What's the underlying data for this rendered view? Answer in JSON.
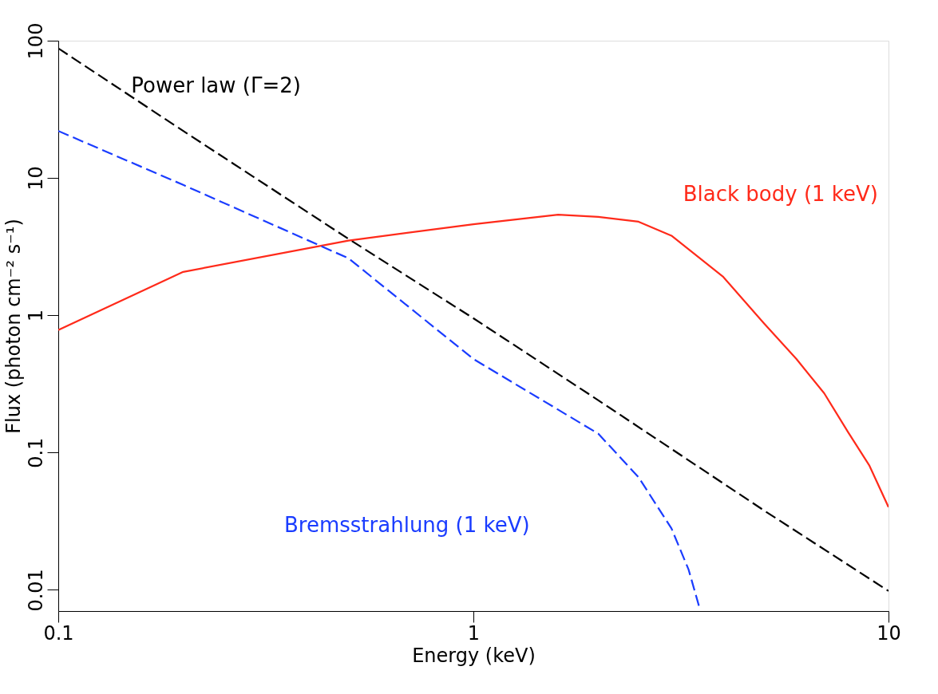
{
  "chart_data": {
    "type": "line",
    "xlabel": "Energy (keV)",
    "ylabel": "Flux (photon cm⁻² s⁻¹)",
    "log": "xy",
    "grid": false,
    "legend": false,
    "marker": "none",
    "xlim": [
      0.1,
      10
    ],
    "xticks": [
      0.1,
      1,
      10
    ],
    "ylim": [
      0.007,
      100
    ],
    "yticks": [
      0.01,
      0.1,
      1,
      10,
      100
    ],
    "series": [
      {
        "name": "Power law (Γ=2)",
        "color": "#000000",
        "line_style": "dashed",
        "x": [
          0.1,
          0.2,
          0.5,
          1,
          2,
          5,
          10
        ],
        "values": [
          88,
          22,
          3.6,
          0.95,
          0.24,
          0.038,
          0.0098
        ]
      },
      {
        "name": "Black body (1 keV)",
        "color": "#ff2a1a",
        "line_style": "solid",
        "x": [
          0.1,
          0.2,
          0.5,
          1,
          1.6,
          2,
          2.5,
          3,
          4,
          5,
          6,
          7,
          8,
          9,
          10
        ],
        "values": [
          0.78,
          2.07,
          3.5,
          4.6,
          5.4,
          5.2,
          4.8,
          3.8,
          1.9,
          0.88,
          0.48,
          0.27,
          0.14,
          0.08,
          0.04
        ]
      },
      {
        "name": "Bremsstrahlung (1 keV)",
        "color": "#1a3cff",
        "line_style": "dashed",
        "x": [
          0.1,
          0.2,
          0.5,
          1,
          2,
          2.5,
          3,
          3.3,
          3.5
        ],
        "values": [
          22,
          8.9,
          2.6,
          0.48,
          0.137,
          0.066,
          0.028,
          0.014,
          0.0075
        ]
      }
    ]
  }
}
